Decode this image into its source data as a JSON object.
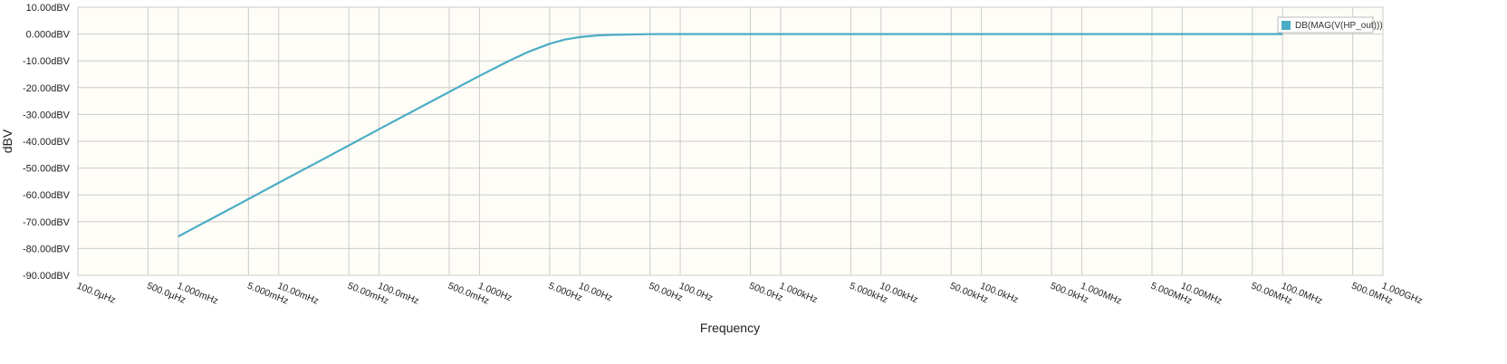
{
  "chart_data": {
    "type": "line",
    "title": "",
    "xlabel": "Frequency",
    "ylabel": "dBV",
    "x_scale": "log",
    "xlim": [
      "100.0µHz",
      "1.000GHz"
    ],
    "ylim": [
      -90,
      10
    ],
    "grid": true,
    "legend_position": "top-right",
    "colors": {
      "series": "#4bacc6",
      "plot_background": "#fffdf7",
      "grid": "#cccccc"
    },
    "y_ticks": [
      {
        "value": 10,
        "label": "10.00dBV"
      },
      {
        "value": 0,
        "label": "0.000dBV"
      },
      {
        "value": -10,
        "label": "-10.00dBV"
      },
      {
        "value": -20,
        "label": "-20.00dBV"
      },
      {
        "value": -30,
        "label": "-30.00dBV"
      },
      {
        "value": -40,
        "label": "-40.00dBV"
      },
      {
        "value": -50,
        "label": "-50.00dBV"
      },
      {
        "value": -60,
        "label": "-60.00dBV"
      },
      {
        "value": -70,
        "label": "-70.00dBV"
      },
      {
        "value": -80,
        "label": "-80.00dBV"
      },
      {
        "value": -90,
        "label": "-90.00dBV"
      }
    ],
    "x_ticks": [
      {
        "value": 0.0001,
        "label": "100.0µHz"
      },
      {
        "value": 0.0005,
        "label": "500.0µHz"
      },
      {
        "value": 0.001,
        "label": "1.000mHz"
      },
      {
        "value": 0.005,
        "label": "5.000mHz"
      },
      {
        "value": 0.01,
        "label": "10.00mHz"
      },
      {
        "value": 0.05,
        "label": "50.00mHz"
      },
      {
        "value": 0.1,
        "label": "100.0mHz"
      },
      {
        "value": 0.5,
        "label": "500.0mHz"
      },
      {
        "value": 1,
        "label": "1.000Hz"
      },
      {
        "value": 5,
        "label": "5.000Hz"
      },
      {
        "value": 10,
        "label": "10.00Hz"
      },
      {
        "value": 50,
        "label": "50.00Hz"
      },
      {
        "value": 100,
        "label": "100.0Hz"
      },
      {
        "value": 500,
        "label": "500.0Hz"
      },
      {
        "value": 1000,
        "label": "1.000kHz"
      },
      {
        "value": 5000,
        "label": "5.000kHz"
      },
      {
        "value": 10000,
        "label": "10.00kHz"
      },
      {
        "value": 50000,
        "label": "50.00kHz"
      },
      {
        "value": 100000,
        "label": "100.0kHz"
      },
      {
        "value": 500000,
        "label": "500.0kHz"
      },
      {
        "value": 1000000,
        "label": "1.000MHz"
      },
      {
        "value": 5000000,
        "label": "5.000MHz"
      },
      {
        "value": 10000000,
        "label": "10.00MHz"
      },
      {
        "value": 50000000,
        "label": "50.00MHz"
      },
      {
        "value": 100000000,
        "label": "100.0MHz"
      },
      {
        "value": 500000000,
        "label": "500.0MHz"
      },
      {
        "value": 1000000000,
        "label": "1.000GHz"
      }
    ],
    "series": [
      {
        "name": "DB(MAG(V(HP_out)))",
        "points": [
          {
            "x": 0.001,
            "y": -75.5
          },
          {
            "x": 0.003,
            "y": -66.0
          },
          {
            "x": 0.01,
            "y": -55.5
          },
          {
            "x": 0.03,
            "y": -46.0
          },
          {
            "x": 0.1,
            "y": -35.5
          },
          {
            "x": 0.3,
            "y": -26.0
          },
          {
            "x": 1,
            "y": -15.6
          },
          {
            "x": 2,
            "y": -9.9
          },
          {
            "x": 3,
            "y": -6.8
          },
          {
            "x": 5,
            "y": -3.6
          },
          {
            "x": 7,
            "y": -2.1
          },
          {
            "x": 10,
            "y": -1.1
          },
          {
            "x": 15,
            "y": -0.5
          },
          {
            "x": 20,
            "y": -0.3
          },
          {
            "x": 50,
            "y": -0.05
          },
          {
            "x": 100,
            "y": 0.0
          },
          {
            "x": 1000,
            "y": 0.0
          },
          {
            "x": 100000,
            "y": 0.0
          },
          {
            "x": 10000000,
            "y": 0.0
          },
          {
            "x": 100000000,
            "y": 0.0
          }
        ]
      }
    ]
  }
}
